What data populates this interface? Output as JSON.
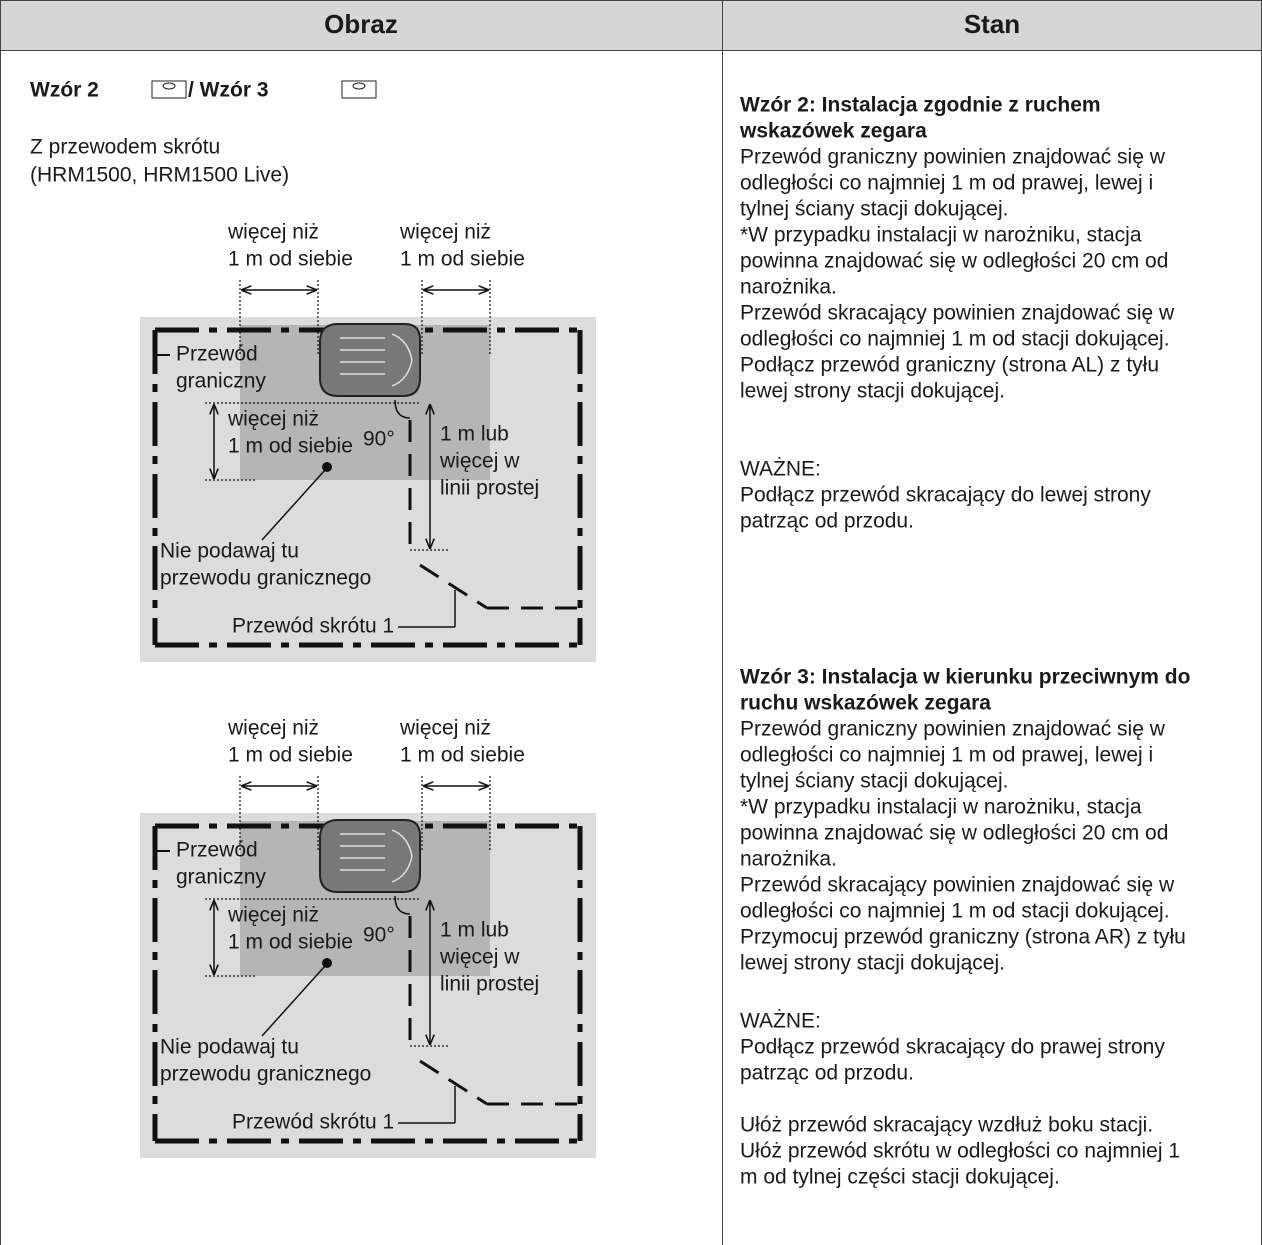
{
  "table": {
    "headers": [
      "Obraz",
      "Stan"
    ],
    "image_cell": {
      "pattern_a": "Wzór 2",
      "pattern_b": "/ Wzór 3",
      "subtitle": [
        "Z przewodem skrótu",
        "(HRM1500, HRM1500 Live)"
      ],
      "diagrams": [
        {
          "gap_left": [
            "więcej niż",
            "1 m od siebie"
          ],
          "gap_right": [
            "więcej niż",
            "1 m od siebie"
          ],
          "boundary_wire": [
            "Przewód",
            "graniczny"
          ],
          "spacing": [
            "więcej niż",
            "1 m od siebie"
          ],
          "angle": "90°",
          "straight": [
            "1 m lub",
            "więcej w",
            "linii prostej"
          ],
          "warning": [
            "Nie podawaj tu",
            "przewodu granicznego"
          ],
          "shortcut": "Przewód skrótu 1"
        },
        {
          "gap_left": [
            "więcej niż",
            "1 m od siebie"
          ],
          "gap_right": [
            "więcej niż",
            "1 m od siebie"
          ],
          "boundary_wire": [
            "Przewód",
            "graniczny"
          ],
          "spacing": [
            "więcej niż",
            "1 m od siebie"
          ],
          "angle": "90°",
          "straight": [
            "1 m lub",
            "więcej w",
            "linii prostej"
          ],
          "warning": [
            "Nie podawaj tu",
            "przewodu granicznego"
          ],
          "shortcut": "Przewód skrótu 1"
        }
      ]
    },
    "state_cell": {
      "sections": [
        {
          "heading": [
            "Wzór 2: Instalacja zgodnie z ruchem",
            "wskazówek zegara"
          ],
          "body": [
            "Przewód graniczny powinien znajdować się w",
            "odległości co najmniej 1 m od prawej, lewej i",
            "tylnej ściany stacji dokującej.",
            "*W przypadku instalacji w narożniku, stacja",
            "powinna znajdować się w odległości 20 cm od",
            "narożnika.",
            "Przewód skracający powinien znajdować się w",
            "odległości co najmniej 1 m od stacji dokującej.",
            "Podłącz przewód graniczny (strona AL) z tyłu",
            "lewej strony stacji dokującej."
          ],
          "important_label": "WAŻNE:",
          "important": [
            "Podłącz przewód skracający do lewej strony",
            "patrząc od przodu."
          ]
        },
        {
          "heading": [
            "Wzór 3: Instalacja w kierunku przeciwnym do",
            "ruchu wskazówek zegara"
          ],
          "body": [
            "Przewód graniczny powinien znajdować się w",
            "odległości co najmniej 1 m od prawej, lewej i",
            "tylnej ściany stacji dokującej.",
            "*W przypadku instalacji w narożniku, stacja",
            "powinna znajdować się w odległości 20 cm od",
            "narożnika.",
            "Przewód skracający powinien znajdować się w",
            "odległości co najmniej 1 m od stacji dokującej.",
            "Przymocuj przewód graniczny (strona AR) z tyłu",
            "lewej strony stacji dokującej."
          ],
          "important_label": "WAŻNE:",
          "important": [
            "Podłącz przewód skracający do prawej strony",
            "patrząc od przodu."
          ],
          "notes": [
            "Ułóż przewód skracający wzdłuż boku stacji.",
            "Ułóż przewód skrótu w odległości co najmniej 1",
            "m od tylnej części stacji dokującej."
          ]
        }
      ]
    }
  }
}
